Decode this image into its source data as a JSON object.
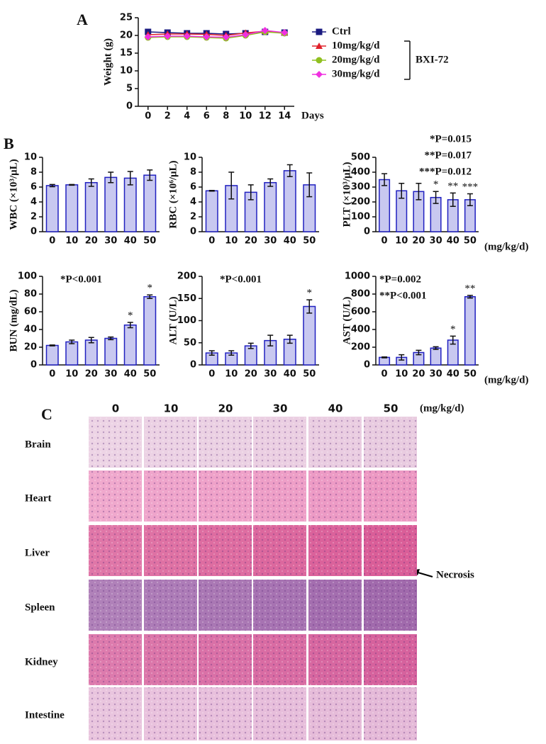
{
  "panel_labels": [
    "A",
    "B",
    "C"
  ],
  "chart_data": [
    {
      "type": "line",
      "ylabel": "Weight (g)",
      "xlabel": "Days",
      "group_label": "BXI-72",
      "x": [
        0,
        2,
        4,
        6,
        8,
        10,
        12,
        14
      ],
      "xlim": [
        -1,
        15
      ],
      "xticks": [
        0,
        2,
        4,
        6,
        8,
        10,
        12,
        14
      ],
      "ylim": [
        0,
        25
      ],
      "yticks": [
        0,
        5,
        10,
        15,
        20,
        25
      ],
      "series": [
        {
          "name": "Ctrl",
          "color": "#1a1a80",
          "marker": "square",
          "values": [
            21,
            20.8,
            20.6,
            20.6,
            20.4,
            20.6,
            21,
            20.8
          ]
        },
        {
          "name": "10mg/kg/d",
          "color": "#e0202a",
          "marker": "triangle",
          "values": [
            20.2,
            20.4,
            20.4,
            20.3,
            20,
            20.7,
            21.2,
            20.8
          ]
        },
        {
          "name": "20mg/kg/d",
          "color": "#90c020",
          "marker": "circle",
          "values": [
            19.4,
            19.6,
            19.6,
            19.4,
            19.2,
            20,
            21,
            20.6
          ]
        },
        {
          "name": "30mg/kg/d",
          "color": "#f030e0",
          "marker": "diamond",
          "values": [
            19.6,
            19.8,
            19.8,
            19.6,
            19.5,
            20.2,
            21.4,
            20.8
          ]
        }
      ]
    },
    {
      "type": "bar",
      "ylabel": "WBC (×10³/μL)",
      "categories": [
        "0",
        "10",
        "20",
        "30",
        "40",
        "50"
      ],
      "values": [
        6.2,
        6.3,
        6.6,
        7.3,
        7.2,
        7.6
      ],
      "errors": [
        0.15,
        0.05,
        0.5,
        0.7,
        0.9,
        0.7
      ],
      "ylim": [
        0,
        10
      ],
      "yticks": [
        0,
        2,
        4,
        6,
        8,
        10
      ],
      "color": "#c8c8f0",
      "edgecolor": "#2020c0"
    },
    {
      "type": "bar",
      "ylabel": "RBC (×10⁶/μL)",
      "categories": [
        "0",
        "10",
        "20",
        "30",
        "40",
        "50"
      ],
      "values": [
        5.5,
        6.2,
        5.3,
        6.6,
        8.2,
        6.3
      ],
      "errors": [
        0.05,
        1.8,
        1,
        0.5,
        0.8,
        1.6
      ],
      "ylim": [
        0,
        10
      ],
      "yticks": [
        0,
        2,
        4,
        6,
        8,
        10
      ],
      "color": "#c8c8f0",
      "edgecolor": "#2020c0"
    },
    {
      "type": "bar",
      "ylabel": "PLT (×10³/μL)",
      "xlabel": "(mg/kg/d)",
      "categories": [
        "0",
        "10",
        "20",
        "30",
        "40",
        "50"
      ],
      "values": [
        350,
        275,
        270,
        230,
        215,
        215
      ],
      "errors": [
        40,
        50,
        55,
        40,
        45,
        40
      ],
      "sig_labels": [
        null,
        null,
        null,
        "*",
        "**",
        "***"
      ],
      "annotations": [
        "*P=0.015",
        "**P=0.017",
        "***P=0.012"
      ],
      "ylim": [
        0,
        500
      ],
      "yticks": [
        0,
        100,
        200,
        300,
        400,
        500
      ],
      "color": "#c8c8f0",
      "edgecolor": "#2020c0"
    },
    {
      "type": "bar",
      "ylabel": "BUN (mg/dL)",
      "categories": [
        "0",
        "10",
        "20",
        "30",
        "40",
        "50"
      ],
      "values": [
        22,
        26,
        28,
        30,
        45,
        77
      ],
      "errors": [
        0.5,
        2,
        3,
        1.5,
        3,
        2
      ],
      "sig_labels": [
        null,
        null,
        null,
        null,
        "*",
        "*"
      ],
      "annotations": [
        "*P<0.001"
      ],
      "ylim": [
        0,
        100
      ],
      "yticks": [
        0,
        20,
        40,
        60,
        80,
        100
      ],
      "color": "#c8c8f0",
      "edgecolor": "#2020c0"
    },
    {
      "type": "bar",
      "ylabel": "ALT (U/L)",
      "categories": [
        "0",
        "10",
        "20",
        "30",
        "40",
        "50"
      ],
      "values": [
        27,
        27,
        43,
        55,
        58,
        132
      ],
      "errors": [
        5,
        5,
        6,
        12,
        9,
        15
      ],
      "sig_labels": [
        null,
        null,
        null,
        null,
        null,
        "*"
      ],
      "annotations": [
        "*P<0.001"
      ],
      "ylim": [
        0,
        200
      ],
      "yticks": [
        0,
        50,
        100,
        150,
        200
      ],
      "color": "#c8c8f0",
      "edgecolor": "#2020c0"
    },
    {
      "type": "bar",
      "ylabel": "AST (U/L)",
      "xlabel": "(mg/kg/d)",
      "categories": [
        "0",
        "10",
        "20",
        "30",
        "40",
        "50"
      ],
      "values": [
        85,
        85,
        140,
        190,
        280,
        770
      ],
      "errors": [
        5,
        30,
        25,
        15,
        45,
        15
      ],
      "sig_labels": [
        null,
        null,
        null,
        null,
        "*",
        "**"
      ],
      "annotations": [
        "*P=0.002",
        "**P<0.001"
      ],
      "ylim": [
        0,
        1000
      ],
      "yticks": [
        0,
        200,
        400,
        600,
        800,
        1000
      ],
      "color": "#c8c8f0",
      "edgecolor": "#2020c0"
    }
  ],
  "histology": {
    "columns": [
      "0",
      "10",
      "20",
      "30",
      "40",
      "50"
    ],
    "unit": "(mg/kg/d)",
    "rows": [
      "Brain",
      "Heart",
      "Liver",
      "Spleen",
      "Kidney",
      "Intestine"
    ],
    "annotation": "Necrosis"
  }
}
